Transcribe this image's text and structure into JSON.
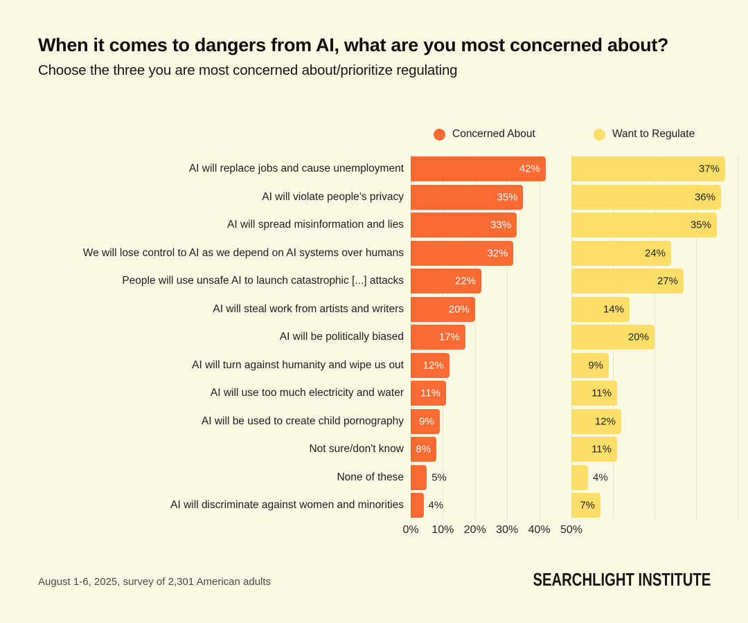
{
  "title": "When it comes to dangers from AI, what are you most concerned about?",
  "subtitle": "Choose the three you are most concerned about/prioritize regulating",
  "legend": [
    {
      "label": "Concerned About",
      "color": "#FB6A33"
    },
    {
      "label": "Want to Regulate",
      "color": "#FBDD68"
    }
  ],
  "chart_data": {
    "type": "bar",
    "orientation": "horizontal",
    "categories": [
      "AI will replace jobs and cause unemployment",
      "AI will violate people’s privacy",
      "AI will spread misinformation and lies",
      "We will lose control to AI as we depend on AI systems over humans",
      "People will use unsafe AI to launch catastrophic [...] attacks",
      "AI will steal work from artists and writers",
      "AI will be politically biased",
      "AI will turn against humanity and wipe us out",
      "AI will use too much electricity and water",
      "AI will be used to create child pornography",
      "Not sure/don't know",
      "None of these",
      "AI will discriminate against women and minorities"
    ],
    "series": [
      {
        "name": "Concerned About",
        "color": "#FB6A33",
        "values": [
          42,
          35,
          33,
          32,
          22,
          20,
          17,
          12,
          11,
          9,
          8,
          5,
          4
        ],
        "axis_range": [
          0,
          50
        ]
      },
      {
        "name": "Want to Regulate",
        "color": "#FBDD68",
        "values": [
          37,
          36,
          35,
          24,
          27,
          14,
          20,
          9,
          11,
          12,
          11,
          4,
          7
        ],
        "axis_range": [
          0,
          40
        ]
      }
    ],
    "value_suffix": "%",
    "x_ticks": [
      "0%",
      "10%",
      "20%",
      "30%",
      "40%",
      "50%"
    ],
    "grid": true,
    "grid_color": "#E6E4D1",
    "background_color": "#FBF9E3"
  },
  "footer": {
    "note": "August 1-6, 2025, survey of 2,301 American adults",
    "brand": "SEARCHLIGHT INSTITUTE"
  }
}
